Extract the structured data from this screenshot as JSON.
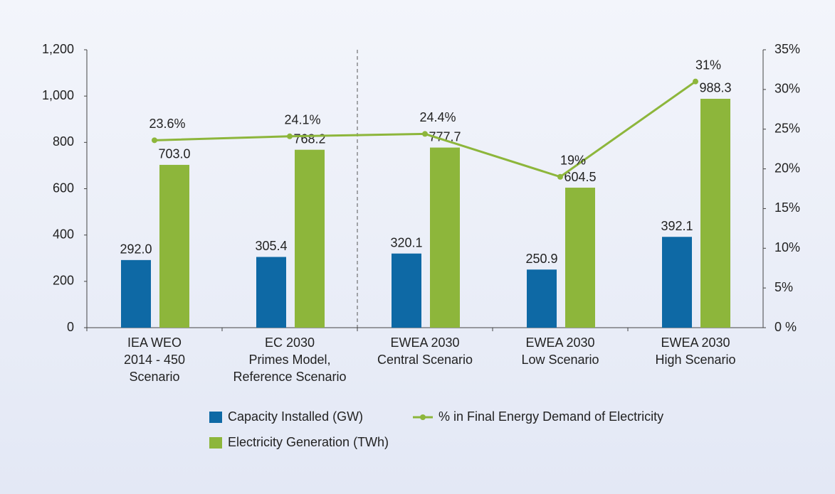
{
  "chart_data": {
    "type": "bar_line",
    "categories": [
      [
        "IEA WEO",
        "2014 - 450",
        "Scenario"
      ],
      [
        "EC 2030",
        "Primes Model,",
        "Reference Scenario"
      ],
      [
        "EWEA 2030",
        "Central Scenario"
      ],
      [
        "EWEA 2030",
        "Low Scenario"
      ],
      [
        "EWEA 2030",
        "High Scenario"
      ]
    ],
    "series": [
      {
        "name": "Capacity Installed (GW)",
        "color": "#0e69a5",
        "values": [
          292.0,
          305.4,
          320.1,
          250.9,
          392.1
        ],
        "value_labels": [
          "292.0",
          "305.4",
          "320.1",
          "250.9",
          "392.1"
        ]
      },
      {
        "name": "Electricity Generation (TWh)",
        "color": "#8db63b",
        "values": [
          703.0,
          768.2,
          777.7,
          604.5,
          988.3
        ],
        "value_labels": [
          "703.0",
          "768.2",
          "777.7",
          "604.5",
          "988.3"
        ]
      },
      {
        "name": "% in Final Energy Demand of Electricity",
        "color": "#8db63b",
        "axis": "y2",
        "type": "line",
        "values": [
          23.6,
          24.1,
          24.4,
          19,
          31
        ],
        "value_labels": [
          "23.6%",
          "24.1%",
          "24.4%",
          "19%",
          "31%"
        ]
      }
    ],
    "ylim": [
      0,
      1200
    ],
    "yticks": [
      0,
      200,
      400,
      600,
      800,
      {
        "value": 1000,
        "label": "1,000"
      },
      {
        "value": 1200,
        "label": "1,200"
      }
    ],
    "y2lim": [
      0,
      35
    ],
    "y2ticks": [
      {
        "value": 0,
        "label": "0 %"
      },
      {
        "value": 5,
        "label": "5%"
      },
      {
        "value": 10,
        "label": "10%"
      },
      {
        "value": 15,
        "label": "15%"
      },
      {
        "value": 20,
        "label": "20%"
      },
      {
        "value": 25,
        "label": "25%"
      },
      {
        "value": 30,
        "label": "30%"
      },
      {
        "value": 35,
        "label": "35%"
      }
    ]
  }
}
